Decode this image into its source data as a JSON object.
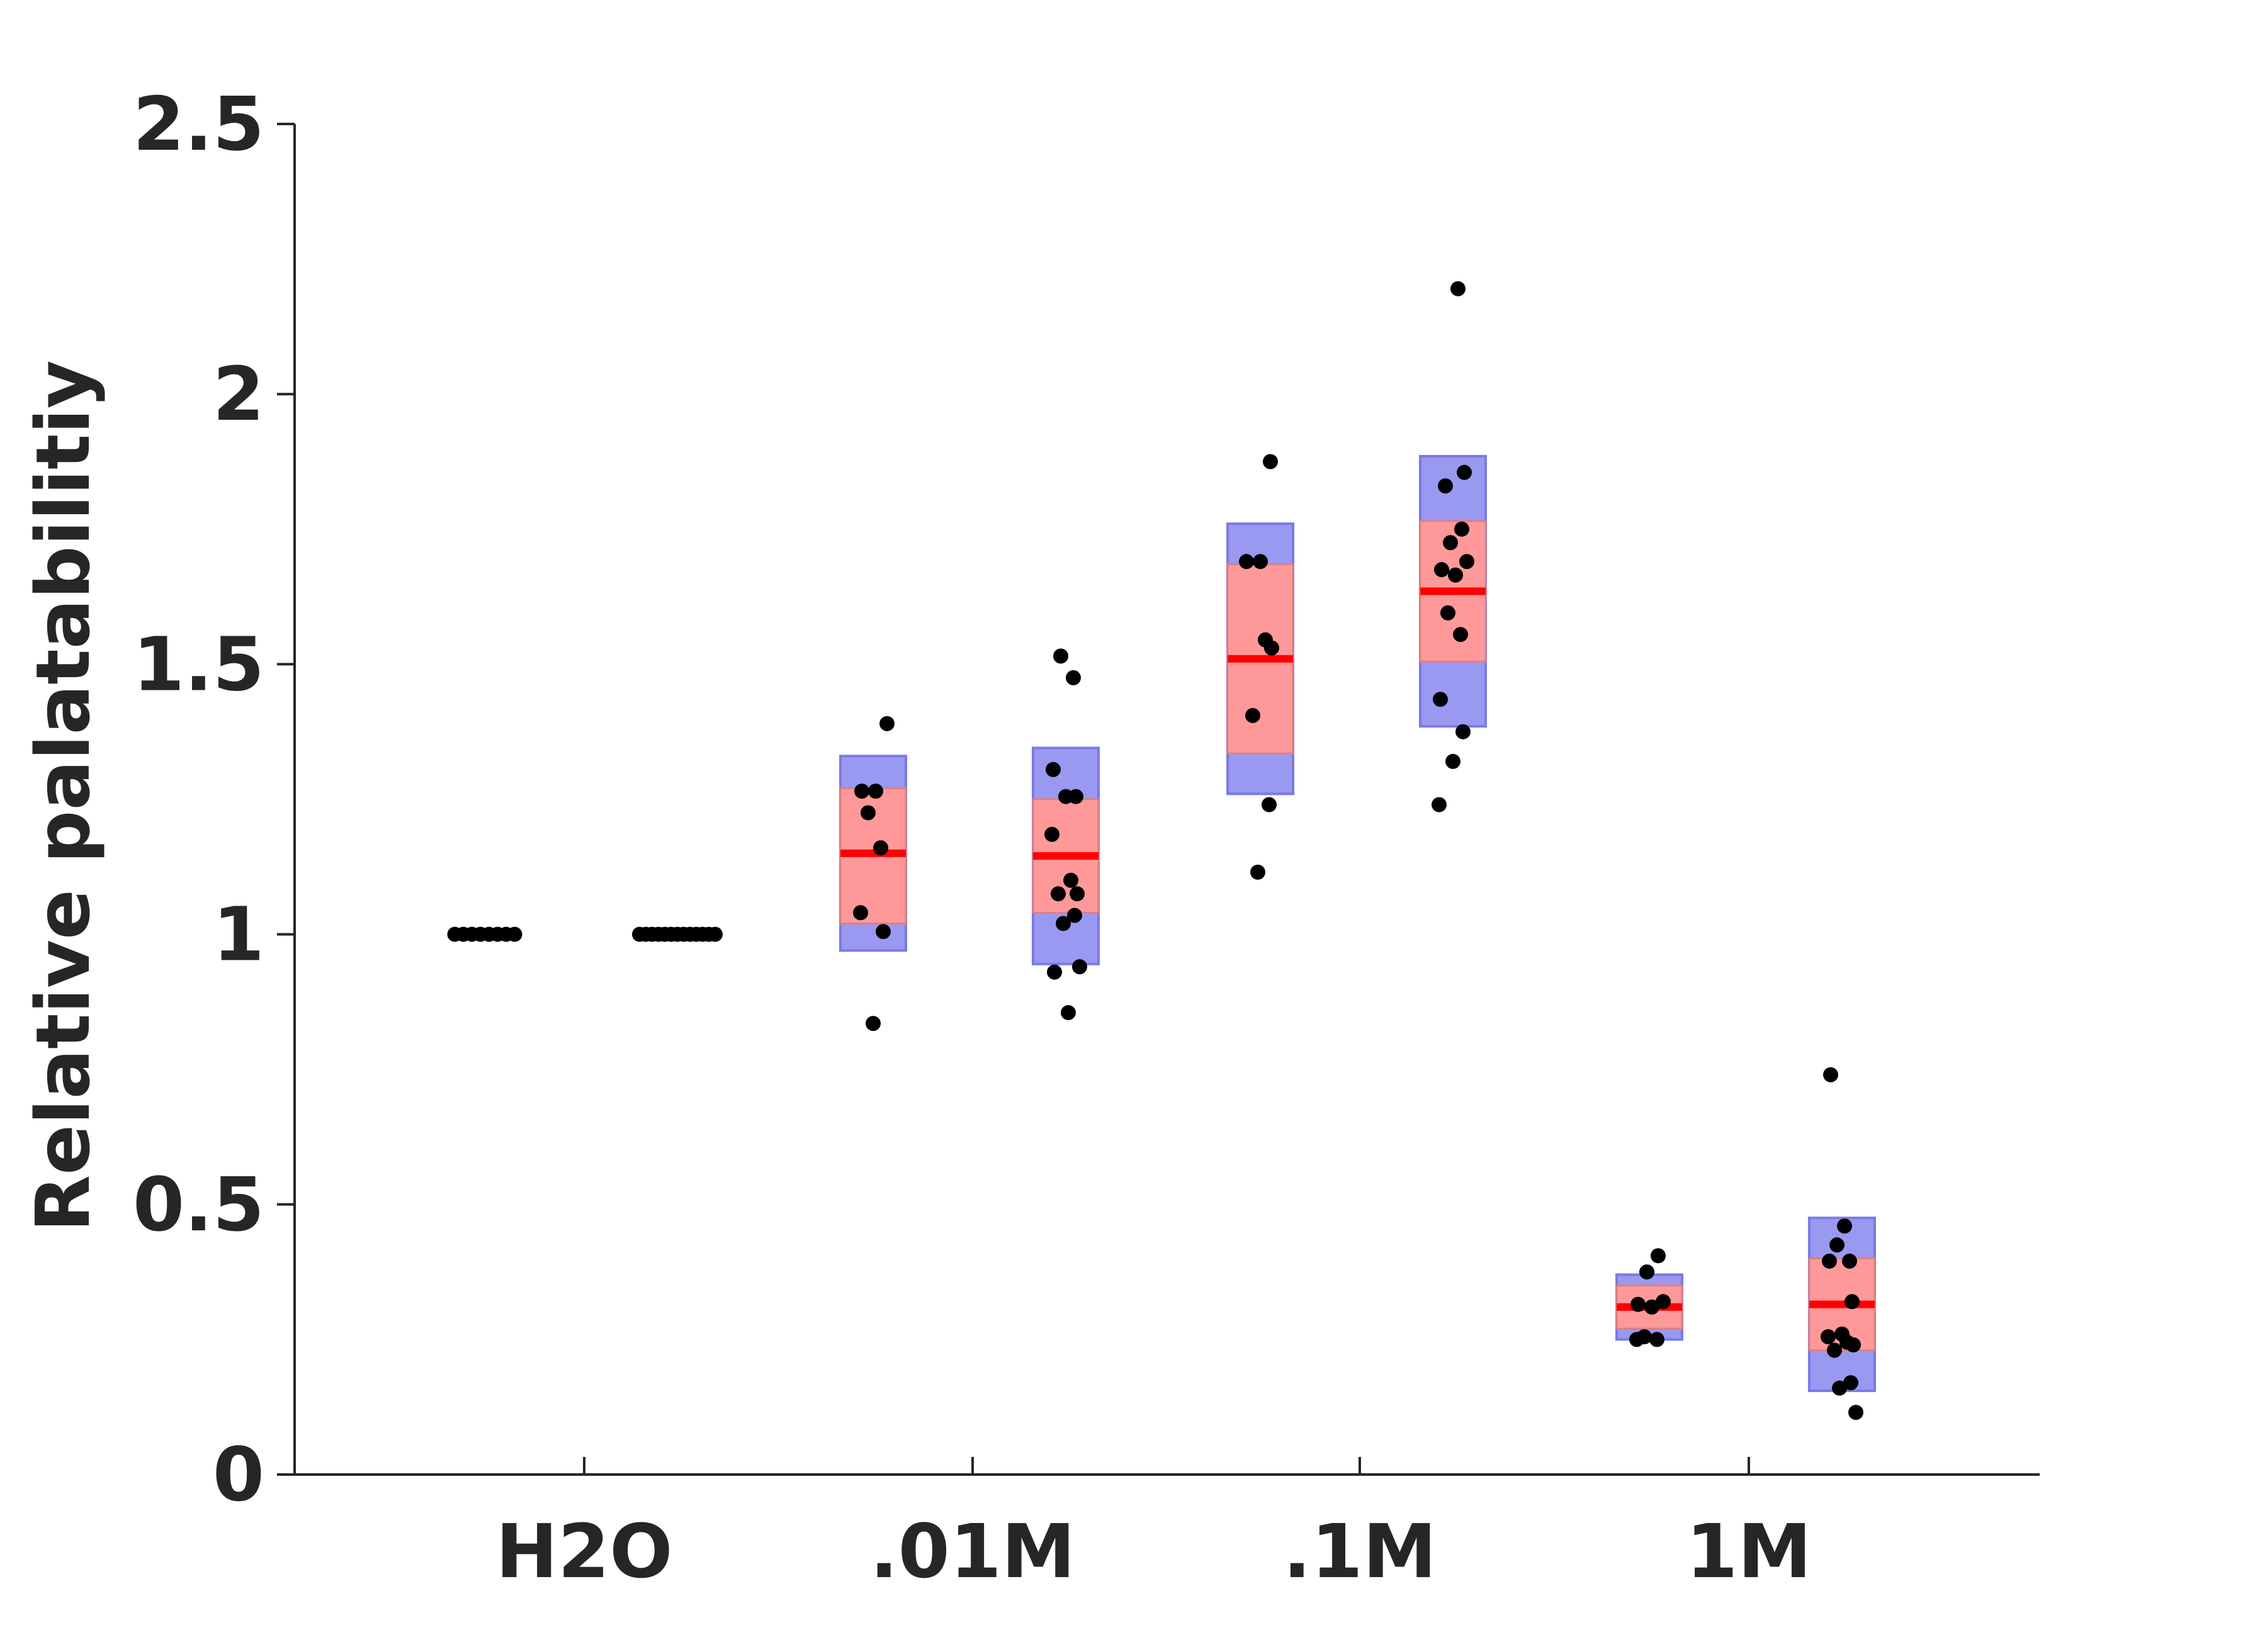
{
  "chart_data": {
    "type": "scatter",
    "title": "",
    "xlabel": "",
    "ylabel": "Relative palatabilitiy",
    "ylim": [
      0,
      2.5
    ],
    "yticks": [
      "0",
      "0.5",
      "1",
      "1.5",
      "2",
      "2.5"
    ],
    "ytick_values": [
      0,
      0.5,
      1,
      1.5,
      2,
      2.5
    ],
    "categories": [
      "H2O",
      ".01M",
      ".1M",
      "1M"
    ],
    "grid": false,
    "legend": "none",
    "colors": {
      "sd_box": "#9999f2",
      "sem_box": "#ff9999",
      "mean_line": "#ff0000",
      "points": "#000000",
      "axis": "#262626"
    },
    "groups": [
      {
        "category": "H2O",
        "side": "left",
        "mean": 1.0,
        "sem": [
          1.0,
          1.0
        ],
        "sd": [
          1.0,
          1.0
        ],
        "points": [
          1,
          1,
          1,
          1,
          1,
          1,
          1,
          1
        ]
      },
      {
        "category": "H2O",
        "side": "right",
        "mean": 1.0,
        "sem": [
          1.0,
          1.0
        ],
        "sd": [
          1.0,
          1.0
        ],
        "points": [
          1,
          1,
          1,
          1,
          1,
          1,
          1,
          1,
          1,
          1,
          1,
          1,
          1
        ]
      },
      {
        "category": ".01M",
        "side": "left",
        "mean": 1.15,
        "sem": [
          1.02,
          1.27
        ],
        "sd": [
          0.97,
          1.33
        ],
        "points": [
          1.39,
          1.265,
          1.265,
          1.225,
          1.16,
          1.04,
          1.005,
          0.835
        ]
      },
      {
        "category": ".01M",
        "side": "right",
        "mean": 1.145,
        "sem": [
          1.04,
          1.25
        ],
        "sd": [
          0.945,
          1.345
        ],
        "points": [
          1.515,
          1.475,
          1.305,
          1.255,
          1.255,
          1.185,
          1.1,
          1.075,
          1.075,
          1.035,
          1.02,
          0.94,
          0.93,
          0.855
        ]
      },
      {
        "category": ".1M",
        "side": "left",
        "mean": 1.51,
        "sem": [
          1.335,
          1.685
        ],
        "sd": [
          1.26,
          1.76
        ],
        "points": [
          1.875,
          1.69,
          1.69,
          1.545,
          1.53,
          1.405,
          1.24,
          1.115
        ]
      },
      {
        "category": ".1M",
        "side": "right",
        "mean": 1.635,
        "sem": [
          1.505,
          1.765
        ],
        "sd": [
          1.385,
          1.885
        ],
        "points": [
          2.195,
          1.855,
          1.83,
          1.75,
          1.725,
          1.69,
          1.675,
          1.665,
          1.595,
          1.555,
          1.435,
          1.375,
          1.32,
          1.24
        ]
      },
      {
        "category": "1M",
        "side": "left",
        "mean": 0.31,
        "sem": [
          0.27,
          0.35
        ],
        "sd": [
          0.25,
          0.37
        ],
        "points": [
          0.405,
          0.375,
          0.32,
          0.315,
          0.31,
          0.255,
          0.25,
          0.25
        ]
      },
      {
        "category": "1M",
        "side": "right",
        "mean": 0.315,
        "sem": [
          0.23,
          0.4
        ],
        "sd": [
          0.155,
          0.475
        ],
        "points": [
          0.74,
          0.46,
          0.425,
          0.395,
          0.395,
          0.32,
          0.26,
          0.255,
          0.245,
          0.24,
          0.23,
          0.17,
          0.16,
          0.115
        ]
      }
    ]
  }
}
